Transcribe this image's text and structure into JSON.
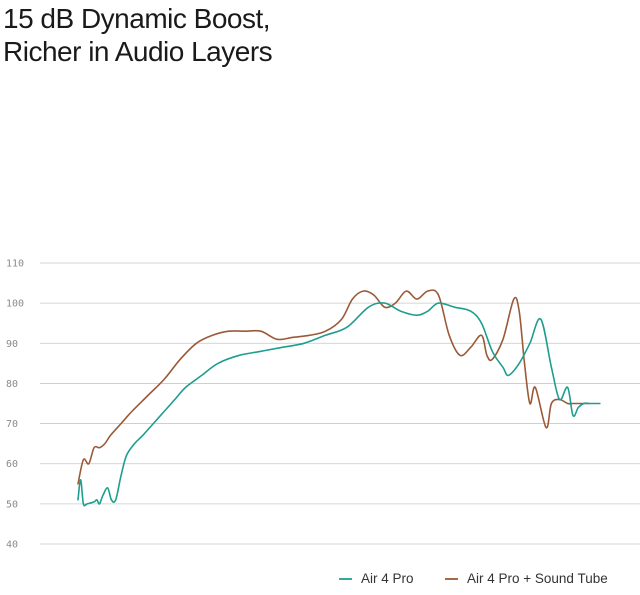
{
  "title": {
    "line1": "15 dB Dynamic Boost,",
    "line2": "Richer in Audio Layers"
  },
  "colors": {
    "air4pro": "#1e9e8f",
    "air4pro_soundtube": "#9a5a38",
    "grid": "#c8c8c8",
    "tick": "#8a8a8a"
  },
  "chart_data": {
    "type": "line",
    "title": "15 dB Dynamic Boost, Richer in Audio Layers",
    "xlabel": "",
    "ylabel": "",
    "ylim": [
      40,
      110
    ],
    "yticks": [
      110,
      100,
      90,
      80,
      70,
      60,
      50,
      40
    ],
    "grid": true,
    "legend": "bottom-right",
    "x_axis_note": "no x tick labels printed; x values are relative position along the curve (0-1)",
    "series": [
      {
        "name": "Air 4 Pro",
        "color": "#1e9e8f",
        "x": [
          0.0,
          0.005,
          0.01,
          0.017,
          0.03,
          0.035,
          0.04,
          0.046,
          0.055,
          0.062,
          0.07,
          0.08,
          0.09,
          0.105,
          0.12,
          0.14,
          0.16,
          0.18,
          0.2,
          0.23,
          0.26,
          0.3,
          0.34,
          0.38,
          0.42,
          0.46,
          0.5,
          0.54,
          0.57,
          0.6,
          0.63,
          0.65,
          0.67,
          0.7,
          0.73,
          0.75,
          0.77,
          0.79,
          0.8,
          0.82,
          0.84,
          0.86,
          0.88,
          0.895,
          0.91,
          0.92,
          0.93,
          0.94,
          0.95,
          0.96,
          0.97
        ],
        "values": [
          51,
          56,
          50,
          50,
          50.5,
          51,
          50,
          52,
          54,
          51,
          51,
          57,
          62,
          65,
          67,
          70,
          73,
          76,
          79,
          82,
          85,
          87,
          88,
          89,
          90,
          92,
          94,
          99,
          100,
          98,
          97,
          98,
          100,
          99,
          98,
          95,
          88,
          84,
          82,
          85,
          90,
          96,
          84,
          76,
          79,
          72,
          74,
          75,
          75,
          75,
          75
        ]
      },
      {
        "name": "Air 4 Pro + Sound Tube",
        "color": "#9a5a38",
        "x": [
          0.0,
          0.01,
          0.02,
          0.03,
          0.04,
          0.05,
          0.06,
          0.08,
          0.1,
          0.13,
          0.16,
          0.19,
          0.22,
          0.25,
          0.28,
          0.31,
          0.34,
          0.37,
          0.4,
          0.43,
          0.46,
          0.49,
          0.51,
          0.53,
          0.55,
          0.57,
          0.59,
          0.61,
          0.63,
          0.65,
          0.67,
          0.69,
          0.71,
          0.73,
          0.75,
          0.76,
          0.77,
          0.79,
          0.81,
          0.82,
          0.83,
          0.84,
          0.85,
          0.87,
          0.88,
          0.895,
          0.91,
          0.92,
          0.93,
          0.94,
          0.95
        ],
        "values": [
          55,
          61,
          60,
          64,
          64,
          65,
          67,
          70,
          73,
          77,
          81,
          86,
          90,
          92,
          93,
          93,
          93,
          91,
          91.5,
          92,
          93,
          96,
          101,
          103,
          102,
          99,
          100,
          103,
          101,
          103,
          102,
          92,
          87,
          89,
          92,
          87,
          86,
          91,
          101,
          98,
          85,
          75,
          79,
          69,
          75,
          76,
          75,
          75,
          75,
          75,
          75
        ]
      }
    ]
  },
  "legend": {
    "items": [
      {
        "label": "Air 4 Pro",
        "color": "#1e9e8f"
      },
      {
        "label": "Air 4 Pro + Sound Tube",
        "color": "#9a5a38"
      }
    ]
  }
}
